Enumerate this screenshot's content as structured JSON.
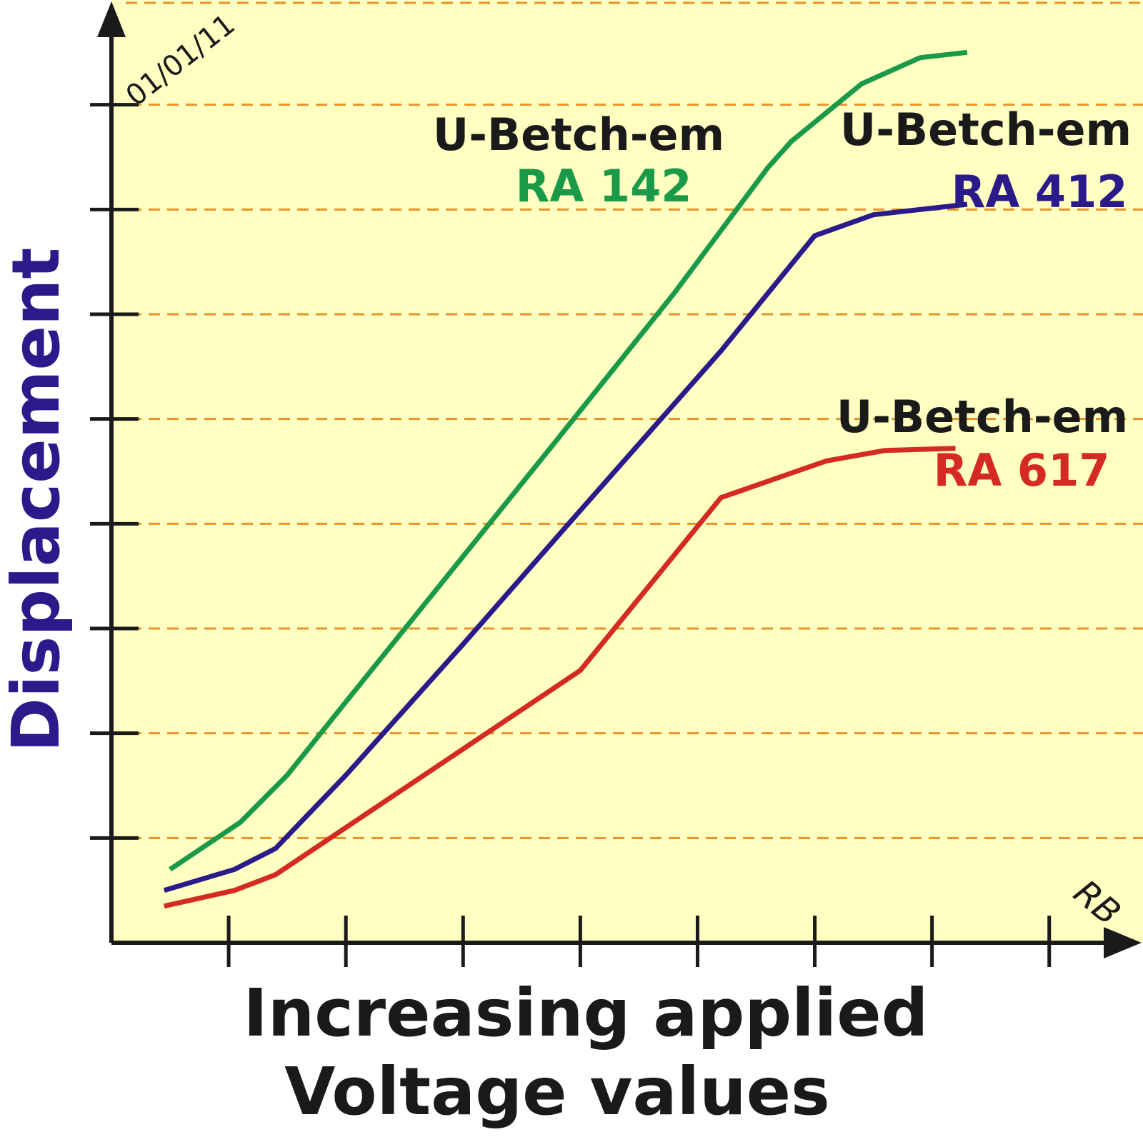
{
  "chart_data": {
    "type": "line",
    "title": "",
    "xlabel": [
      "Increasing applied",
      "Voltage values"
    ],
    "ylabel": "Displacement",
    "xlim": [
      0,
      8.8
    ],
    "ylim": [
      0,
      9
    ],
    "x_ticks": 8,
    "y_ticks": 8,
    "grid": true,
    "date": "01/01/11",
    "signature": "RB",
    "colors": {
      "background": "#ffffc2",
      "grid": "#e8922a",
      "axis": "#1a1a1a",
      "ylabel": "#2b1a8a"
    },
    "series": [
      {
        "manufacturer": "U-Betch-em",
        "model": "RA 142",
        "color": "#1a9a48",
        "x": [
          0.5,
          1.1,
          1.5,
          2.0,
          2.9,
          3.8,
          4.8,
          5.6,
          5.8,
          6.4,
          6.9,
          7.3
        ],
        "y": [
          0.7,
          1.15,
          1.6,
          2.3,
          3.55,
          4.8,
          6.2,
          7.4,
          7.65,
          8.2,
          8.45,
          8.5
        ]
      },
      {
        "manufacturer": "U-Betch-em",
        "model": "RA 412",
        "color": "#2b1a8a",
        "x": [
          0.45,
          1.05,
          1.4,
          2.0,
          3.0,
          3.9,
          5.2,
          6.0,
          6.5,
          7.3
        ],
        "y": [
          0.5,
          0.7,
          0.9,
          1.6,
          2.85,
          4.0,
          5.65,
          6.75,
          6.95,
          7.05
        ]
      },
      {
        "manufacturer": "U-Betch-em",
        "model": "RA 617",
        "color": "#d42a22",
        "x": [
          0.45,
          1.05,
          1.4,
          2.0,
          3.0,
          4.0,
          5.2,
          6.1,
          6.6,
          7.2
        ],
        "y": [
          0.35,
          0.5,
          0.65,
          1.1,
          1.85,
          2.6,
          4.25,
          4.6,
          4.7,
          4.72
        ]
      }
    ]
  }
}
